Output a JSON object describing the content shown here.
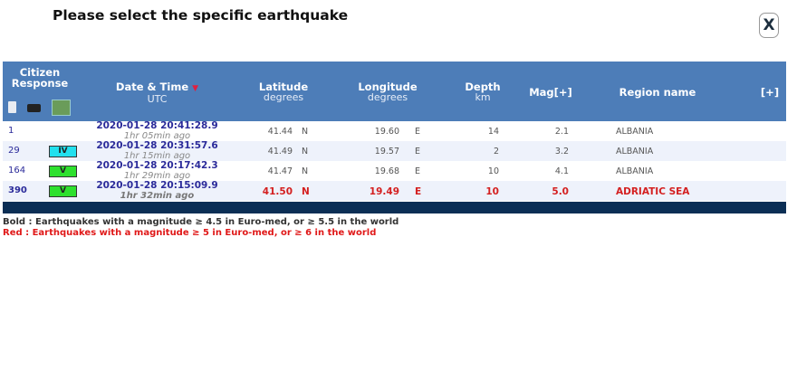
{
  "dialog": {
    "title": "Please select the specific earthquake",
    "close_label": "X"
  },
  "table": {
    "headers": {
      "citizen": "Citizen Response",
      "datetime": "Date & Time",
      "datetime_sub": "UTC",
      "latitude": "Latitude",
      "latitude_sub": "degrees",
      "longitude": "Longitude",
      "longitude_sub": "degrees",
      "depth": "Depth",
      "depth_sub": "km",
      "mag": "Mag[+]",
      "region": "Region name",
      "more": "[+]"
    },
    "header_icons": [
      "document-icon",
      "camera-icon",
      "map-icon"
    ],
    "rows": [
      {
        "responses": "1",
        "intensity": "",
        "date": "2020-01-28   20:41:28.9",
        "ago": "1hr 05min ago",
        "lat": "41.44",
        "ns": "N",
        "lon": "19.60",
        "ew": "E",
        "depth": "14",
        "mag": "2.1",
        "region": "ALBANIA"
      },
      {
        "responses": "29",
        "intensity": "IV",
        "intensity_color": "#22e0ee",
        "date": "2020-01-28   20:31:57.6",
        "ago": "1hr 15min ago",
        "lat": "41.49",
        "ns": "N",
        "lon": "19.57",
        "ew": "E",
        "depth": "2",
        "mag": "3.2",
        "region": "ALBANIA"
      },
      {
        "responses": "164",
        "intensity": "V",
        "intensity_color": "#2ee02e",
        "date": "2020-01-28   20:17:42.3",
        "ago": "1hr 29min ago",
        "lat": "41.47",
        "ns": "N",
        "lon": "19.68",
        "ew": "E",
        "depth": "10",
        "mag": "4.1",
        "region": "ALBANIA"
      },
      {
        "responses": "390",
        "intensity": "V",
        "intensity_color": "#2ee02e",
        "date": "2020-01-28   20:15:09.9",
        "ago": "1hr 32min ago",
        "lat": "41.50",
        "ns": "N",
        "lon": "19.49",
        "ew": "E",
        "depth": "10",
        "mag": "5.0",
        "region": "ADRIATIC SEA"
      }
    ]
  },
  "legend": {
    "bold": "Bold : Earthquakes with a magnitude ≥ 4.5 in Euro-med, or ≥ 5.5 in the world",
    "red": "Red : Earthquakes with a magnitude ≥ 5 in Euro-med, or ≥ 6 in the world"
  },
  "colors": {
    "header": "#4d7db8",
    "footer": "#0c2f55",
    "red": "#d42020"
  }
}
